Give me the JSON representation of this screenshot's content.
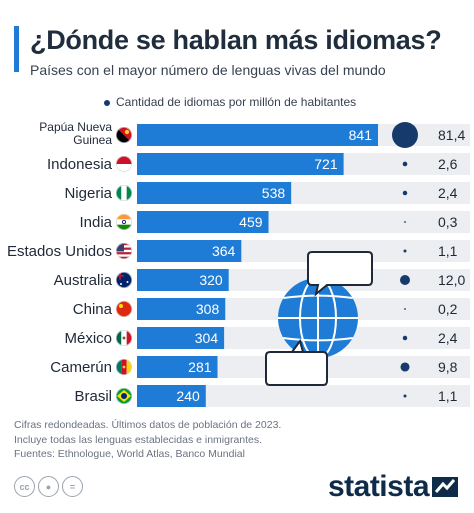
{
  "header": {
    "title": "¿Dónde se hablan más idiomas?",
    "subtitle": "Países con el mayor número de lenguas vivas del mundo"
  },
  "legend": {
    "label": "Cantidad de idiomas por millón de habitantes"
  },
  "colors": {
    "bar": "#1e7bd6",
    "track": "#eceef1",
    "bubble": "#163a6b",
    "accent": "#1e7bd6",
    "globe": "#1e7bd6"
  },
  "chart_data": {
    "type": "bar",
    "orientation": "horizontal",
    "categories": [
      "Papúa Nueva Guinea",
      "Indonesia",
      "Nigeria",
      "India",
      "Estados Unidos",
      "Australia",
      "China",
      "México",
      "Camerún",
      "Brasil"
    ],
    "category_lines": [
      [
        "Papúa Nueva",
        "Guinea"
      ],
      [
        "Indonesia"
      ],
      [
        "Nigeria"
      ],
      [
        "India"
      ],
      [
        "Estados Unidos"
      ],
      [
        "Australia"
      ],
      [
        "China"
      ],
      [
        "México"
      ],
      [
        "Camerún"
      ],
      [
        "Brasil"
      ]
    ],
    "values": [
      841,
      721,
      538,
      459,
      364,
      320,
      308,
      304,
      281,
      240
    ],
    "value_labels": [
      "841",
      "721",
      "538",
      "459",
      "364",
      "320",
      "308",
      "304",
      "281",
      "240"
    ],
    "per_million": [
      81.4,
      2.6,
      2.4,
      0.3,
      1.1,
      12.0,
      0.2,
      2.4,
      9.8,
      1.1
    ],
    "per_million_labels": [
      "81,4",
      "2,6",
      "2,4",
      "0,3",
      "1,1",
      "12,0",
      "0,2",
      "2,4",
      "9,8",
      "1,1"
    ],
    "flags": [
      "papua-new-guinea-flag-icon",
      "indonesia-flag-icon",
      "nigeria-flag-icon",
      "india-flag-icon",
      "usa-flag-icon",
      "australia-flag-icon",
      "china-flag-icon",
      "mexico-flag-icon",
      "cameroon-flag-icon",
      "brazil-flag-icon"
    ],
    "xlim": [
      0,
      841
    ],
    "grid": false
  },
  "footer": {
    "notes": [
      "Cifras redondeadas. Últimos datos de población de 2023.",
      "Incluye todas las lenguas establecidas e inmigrantes.",
      "Fuentes: Ethnologue, World Atlas, Banco Mundial"
    ],
    "brand": "statista"
  }
}
